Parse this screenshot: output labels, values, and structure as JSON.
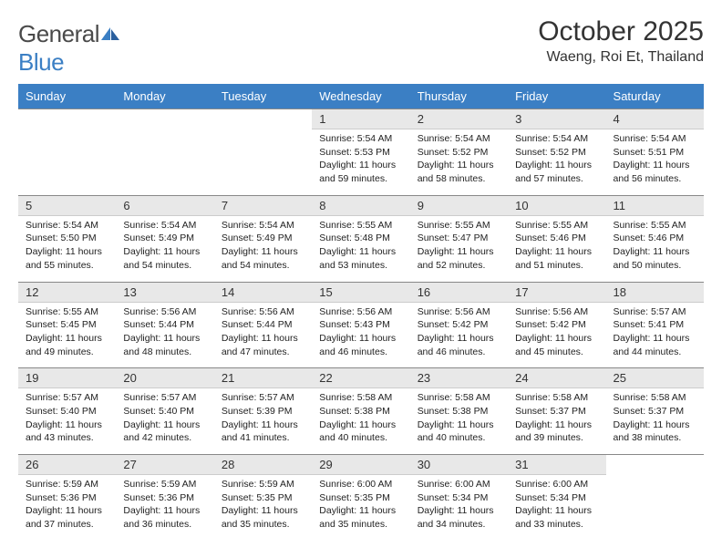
{
  "logo": {
    "word1": "General",
    "word2": "Blue"
  },
  "title": "October 2025",
  "location": "Waeng, Roi Et, Thailand",
  "colors": {
    "header_bg": "#3b7fc4",
    "header_text": "#ffffff",
    "daynum_bg": "#e8e8e8",
    "body_bg": "#ffffff",
    "text": "#222222",
    "logo_gray": "#4a4a4a",
    "logo_blue": "#3b7fc4"
  },
  "typography": {
    "title_fontsize": 30,
    "location_fontsize": 16,
    "dayhead_fontsize": 13,
    "cell_fontsize": 10.5
  },
  "dayheads": [
    "Sunday",
    "Monday",
    "Tuesday",
    "Wednesday",
    "Thursday",
    "Friday",
    "Saturday"
  ],
  "weeks": [
    {
      "nums": [
        "",
        "",
        "",
        "1",
        "2",
        "3",
        "4"
      ],
      "data": [
        null,
        null,
        null,
        {
          "sunrise": "5:54 AM",
          "sunset": "5:53 PM",
          "daylight": "11 hours and 59 minutes."
        },
        {
          "sunrise": "5:54 AM",
          "sunset": "5:52 PM",
          "daylight": "11 hours and 58 minutes."
        },
        {
          "sunrise": "5:54 AM",
          "sunset": "5:52 PM",
          "daylight": "11 hours and 57 minutes."
        },
        {
          "sunrise": "5:54 AM",
          "sunset": "5:51 PM",
          "daylight": "11 hours and 56 minutes."
        }
      ]
    },
    {
      "nums": [
        "5",
        "6",
        "7",
        "8",
        "9",
        "10",
        "11"
      ],
      "data": [
        {
          "sunrise": "5:54 AM",
          "sunset": "5:50 PM",
          "daylight": "11 hours and 55 minutes."
        },
        {
          "sunrise": "5:54 AM",
          "sunset": "5:49 PM",
          "daylight": "11 hours and 54 minutes."
        },
        {
          "sunrise": "5:54 AM",
          "sunset": "5:49 PM",
          "daylight": "11 hours and 54 minutes."
        },
        {
          "sunrise": "5:55 AM",
          "sunset": "5:48 PM",
          "daylight": "11 hours and 53 minutes."
        },
        {
          "sunrise": "5:55 AM",
          "sunset": "5:47 PM",
          "daylight": "11 hours and 52 minutes."
        },
        {
          "sunrise": "5:55 AM",
          "sunset": "5:46 PM",
          "daylight": "11 hours and 51 minutes."
        },
        {
          "sunrise": "5:55 AM",
          "sunset": "5:46 PM",
          "daylight": "11 hours and 50 minutes."
        }
      ]
    },
    {
      "nums": [
        "12",
        "13",
        "14",
        "15",
        "16",
        "17",
        "18"
      ],
      "data": [
        {
          "sunrise": "5:55 AM",
          "sunset": "5:45 PM",
          "daylight": "11 hours and 49 minutes."
        },
        {
          "sunrise": "5:56 AM",
          "sunset": "5:44 PM",
          "daylight": "11 hours and 48 minutes."
        },
        {
          "sunrise": "5:56 AM",
          "sunset": "5:44 PM",
          "daylight": "11 hours and 47 minutes."
        },
        {
          "sunrise": "5:56 AM",
          "sunset": "5:43 PM",
          "daylight": "11 hours and 46 minutes."
        },
        {
          "sunrise": "5:56 AM",
          "sunset": "5:42 PM",
          "daylight": "11 hours and 46 minutes."
        },
        {
          "sunrise": "5:56 AM",
          "sunset": "5:42 PM",
          "daylight": "11 hours and 45 minutes."
        },
        {
          "sunrise": "5:57 AM",
          "sunset": "5:41 PM",
          "daylight": "11 hours and 44 minutes."
        }
      ]
    },
    {
      "nums": [
        "19",
        "20",
        "21",
        "22",
        "23",
        "24",
        "25"
      ],
      "data": [
        {
          "sunrise": "5:57 AM",
          "sunset": "5:40 PM",
          "daylight": "11 hours and 43 minutes."
        },
        {
          "sunrise": "5:57 AM",
          "sunset": "5:40 PM",
          "daylight": "11 hours and 42 minutes."
        },
        {
          "sunrise": "5:57 AM",
          "sunset": "5:39 PM",
          "daylight": "11 hours and 41 minutes."
        },
        {
          "sunrise": "5:58 AM",
          "sunset": "5:38 PM",
          "daylight": "11 hours and 40 minutes."
        },
        {
          "sunrise": "5:58 AM",
          "sunset": "5:38 PM",
          "daylight": "11 hours and 40 minutes."
        },
        {
          "sunrise": "5:58 AM",
          "sunset": "5:37 PM",
          "daylight": "11 hours and 39 minutes."
        },
        {
          "sunrise": "5:58 AM",
          "sunset": "5:37 PM",
          "daylight": "11 hours and 38 minutes."
        }
      ]
    },
    {
      "nums": [
        "26",
        "27",
        "28",
        "29",
        "30",
        "31",
        ""
      ],
      "data": [
        {
          "sunrise": "5:59 AM",
          "sunset": "5:36 PM",
          "daylight": "11 hours and 37 minutes."
        },
        {
          "sunrise": "5:59 AM",
          "sunset": "5:36 PM",
          "daylight": "11 hours and 36 minutes."
        },
        {
          "sunrise": "5:59 AM",
          "sunset": "5:35 PM",
          "daylight": "11 hours and 35 minutes."
        },
        {
          "sunrise": "6:00 AM",
          "sunset": "5:35 PM",
          "daylight": "11 hours and 35 minutes."
        },
        {
          "sunrise": "6:00 AM",
          "sunset": "5:34 PM",
          "daylight": "11 hours and 34 minutes."
        },
        {
          "sunrise": "6:00 AM",
          "sunset": "5:34 PM",
          "daylight": "11 hours and 33 minutes."
        },
        null
      ]
    }
  ],
  "labels": {
    "sunrise": "Sunrise:",
    "sunset": "Sunset:",
    "daylight": "Daylight:"
  }
}
